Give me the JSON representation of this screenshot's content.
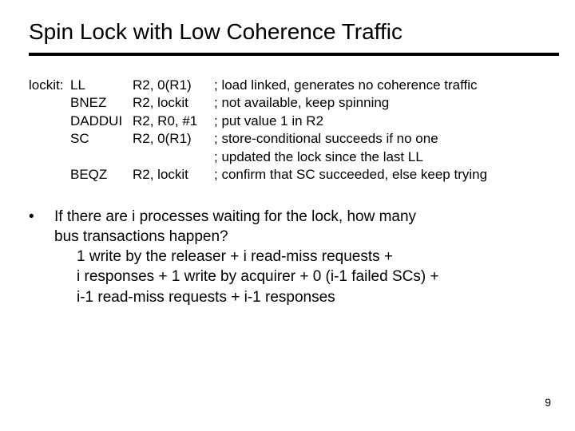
{
  "title": "Spin Lock with Low Coherence Traffic",
  "code": {
    "label": "lockit:",
    "rows": [
      {
        "mnemonic": "LL",
        "ops": "R2, 0(R1)",
        "comment": "; load linked, generates no coherence traffic"
      },
      {
        "mnemonic": "BNEZ",
        "ops": "R2, lockit",
        "comment": "; not available, keep spinning"
      },
      {
        "mnemonic": "DADDUI",
        "ops": "R2, R0, #1",
        "comment": "; put value 1 in R2"
      },
      {
        "mnemonic": "SC",
        "ops": "R2, 0(R1)",
        "comment": "; store-conditional succeeds if no one"
      },
      {
        "mnemonic": "",
        "ops": "",
        "comment": "; updated the lock since the last LL"
      },
      {
        "mnemonic": "BEQZ",
        "ops": "R2, lockit",
        "comment": "; confirm that SC succeeded, else keep trying"
      }
    ]
  },
  "bullet": {
    "marker": "•",
    "lines": [
      "If there are i processes waiting for the lock, how many",
      "bus transactions happen?",
      "1 write by the releaser  +  i read-miss requests  +",
      "i  responses  +  1 write by acquirer  +  0 (i-1 failed SCs)  +",
      "i-1 read-miss requests + i-1 responses"
    ]
  },
  "pagenum": "9",
  "colors": {
    "text": "#000000",
    "background": "#ffffff",
    "rule": "#000000"
  }
}
